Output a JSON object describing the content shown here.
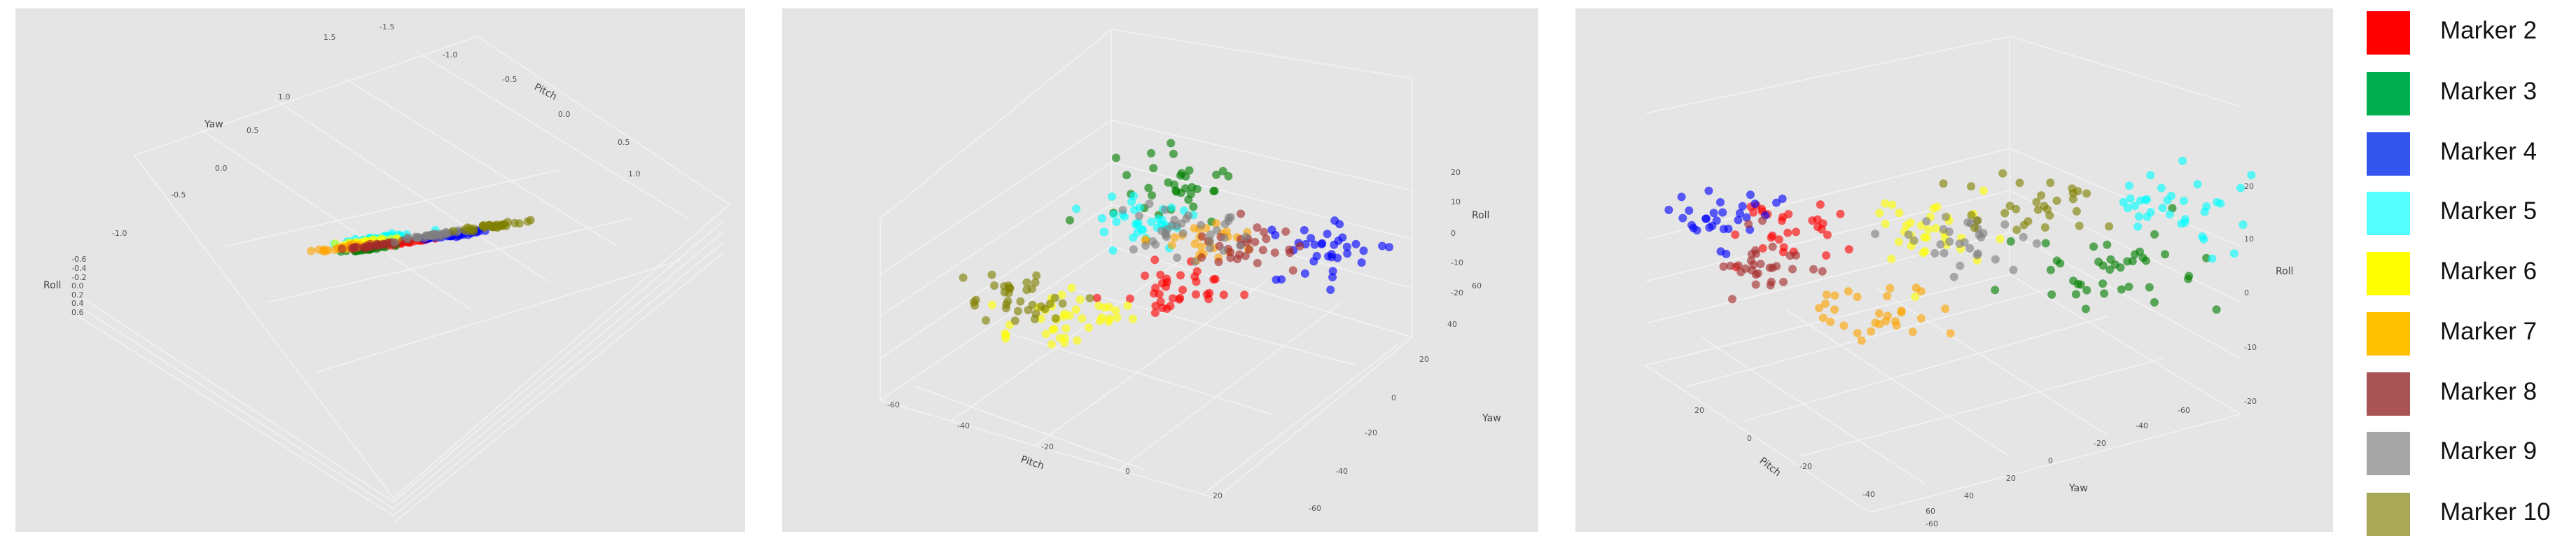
{
  "chart_data": [
    {
      "type": "scatter3d",
      "axis_labels": {
        "x": "Pitch",
        "y": "Yaw",
        "z": "Roll"
      },
      "x_ticks": [
        "1.0",
        "0.5",
        "0.0",
        "-0.5",
        "-1.0",
        "-1.5"
      ],
      "y_ticks": [
        "-1.0",
        "-0.5",
        "0.0",
        "0.5",
        "1.0",
        "1.5"
      ],
      "z_ticks": [
        "-0.6",
        "-0.4",
        "-0.2",
        "0.0",
        "0.2",
        "0.4",
        "0.6"
      ],
      "clusters": [
        {
          "series": "Marker 2",
          "center": [
            0.15,
            0.15,
            0.0
          ],
          "spread": 0.07,
          "count": 30
        },
        {
          "series": "Marker 3",
          "center": [
            0.35,
            0.05,
            0.05
          ],
          "spread": 0.06,
          "count": 30
        },
        {
          "series": "Marker 4",
          "center": [
            -0.05,
            0.25,
            0.05
          ],
          "spread": 0.08,
          "count": 35
        },
        {
          "series": "Marker 5",
          "center": [
            -0.3,
            -0.45,
            0.15
          ],
          "spread": 0.09,
          "count": 35
        },
        {
          "series": "Marker 6",
          "center": [
            -0.05,
            -0.35,
            0.1
          ],
          "spread": 0.09,
          "count": 40
        },
        {
          "series": "Marker 7",
          "center": [
            0.15,
            -0.3,
            0.1
          ],
          "spread": 0.07,
          "count": 25
        },
        {
          "series": "Marker 8",
          "center": [
            0.15,
            -0.05,
            0.05
          ],
          "spread": 0.07,
          "count": 30
        },
        {
          "series": "Marker 9",
          "center": [
            -0.15,
            0.05,
            0.05
          ],
          "spread": 0.08,
          "count": 35
        },
        {
          "series": "Marker 10",
          "center": [
            -0.45,
            0.15,
            0.1
          ],
          "spread": 0.09,
          "count": 35
        }
      ]
    },
    {
      "type": "scatter3d",
      "axis_labels": {
        "x": "Pitch",
        "y": "Yaw",
        "z": "Roll"
      },
      "x_ticks": [
        "-60",
        "-40",
        "-20",
        "0",
        "20"
      ],
      "y_ticks": [
        "-60",
        "-40",
        "-20",
        "0",
        "20",
        "40",
        "60"
      ],
      "z_ticks": [
        "-20",
        "-10",
        "0",
        "10",
        "20"
      ],
      "clusters": [
        {
          "series": "Marker 2",
          "center": [
            5,
            -5,
            0
          ],
          "spread": 5,
          "count": 35
        },
        {
          "series": "Marker 3",
          "center": [
            -30,
            25,
            8
          ],
          "spread": 6,
          "count": 35
        },
        {
          "series": "Marker 4",
          "center": [
            15,
            20,
            5
          ],
          "spread": 6,
          "count": 35
        },
        {
          "series": "Marker 5",
          "center": [
            -28,
            15,
            0
          ],
          "spread": 6,
          "count": 35
        },
        {
          "series": "Marker 6",
          "center": [
            -5,
            -25,
            -5
          ],
          "spread": 6,
          "count": 40
        },
        {
          "series": "Marker 7",
          "center": [
            -5,
            10,
            5
          ],
          "spread": 5,
          "count": 25
        },
        {
          "series": "Marker 8",
          "center": [
            5,
            10,
            5
          ],
          "spread": 5,
          "count": 30
        },
        {
          "series": "Marker 9",
          "center": [
            -12,
            10,
            5
          ],
          "spread": 6,
          "count": 35
        },
        {
          "series": "Marker 10",
          "center": [
            -20,
            -25,
            -5
          ],
          "spread": 6,
          "count": 35
        }
      ]
    },
    {
      "type": "scatter3d",
      "axis_labels": {
        "x": "Pitch",
        "y": "Yaw",
        "z": "Roll"
      },
      "x_ticks": [
        "20",
        "0",
        "-20",
        "-40",
        "-60"
      ],
      "y_ticks": [
        "60",
        "40",
        "20",
        "0",
        "-20",
        "-40",
        "-60"
      ],
      "z_ticks": [
        "-20",
        "-10",
        "0",
        "10",
        "20"
      ],
      "clusters": [
        {
          "series": "Marker 2",
          "center": [
            10,
            25,
            8
          ],
          "spread": 5,
          "count": 30
        },
        {
          "series": "Marker 3",
          "center": [
            -25,
            -15,
            -5
          ],
          "spread": 7,
          "count": 40
        },
        {
          "series": "Marker 4",
          "center": [
            15,
            35,
            8
          ],
          "spread": 5,
          "count": 30
        },
        {
          "series": "Marker 5",
          "center": [
            -30,
            -25,
            15
          ],
          "spread": 6,
          "count": 35
        },
        {
          "series": "Marker 6",
          "center": [
            -5,
            5,
            10
          ],
          "spread": 6,
          "count": 35
        },
        {
          "series": "Marker 7",
          "center": [
            10,
            5,
            -10
          ],
          "spread": 5,
          "count": 30
        },
        {
          "series": "Marker 8",
          "center": [
            15,
            25,
            0
          ],
          "spread": 5,
          "count": 30
        },
        {
          "series": "Marker 9",
          "center": [
            -5,
            0,
            5
          ],
          "spread": 5,
          "count": 30
        },
        {
          "series": "Marker 10",
          "center": [
            -15,
            -10,
            15
          ],
          "spread": 6,
          "count": 30
        }
      ]
    }
  ],
  "legend": {
    "items": [
      {
        "label": "Marker 2",
        "color": "#ff0000"
      },
      {
        "label": "Marker 3",
        "color": "#00b050"
      },
      {
        "label": "Marker 4",
        "color": "#3355ee"
      },
      {
        "label": "Marker 5",
        "color": "#55ffff"
      },
      {
        "label": "Marker 6",
        "color": "#ffff00"
      },
      {
        "label": "Marker 7",
        "color": "#ffc000"
      },
      {
        "label": "Marker 8",
        "color": "#a85454"
      },
      {
        "label": "Marker 9",
        "color": "#a6a6a6"
      },
      {
        "label": "Marker 10",
        "color": "#a8a857"
      }
    ]
  },
  "point_colors": {
    "Marker 2": "#ff0000",
    "Marker 3": "#008000",
    "Marker 4": "#0000ff",
    "Marker 5": "#00ffff",
    "Marker 6": "#ffff00",
    "Marker 7": "#ffa500",
    "Marker 8": "#a52a2a",
    "Marker 9": "#808080",
    "Marker 10": "#808000"
  }
}
